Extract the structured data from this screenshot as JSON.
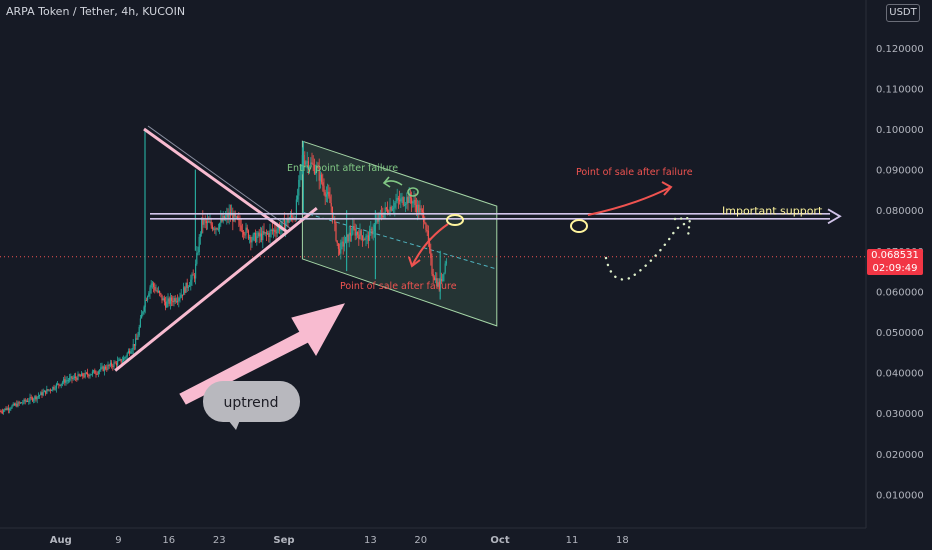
{
  "header": {
    "title": "ARPA Token / Tether, 4h, KUCOIN",
    "currency": "USDT"
  },
  "price_tag": {
    "price": "0.068531",
    "countdown": "02:09:49"
  },
  "colors": {
    "background": "#161a25",
    "up": "#26a69a",
    "down": "#ef5350",
    "trendline": "#f8bbd0",
    "channel": "#a5d6a7",
    "annotation_red": "#ef5350",
    "annotation_green": "#81c784",
    "support": "#d1c4e9"
  },
  "chart_data": {
    "type": "candlestick",
    "symbol": "ARPA Token / Tether",
    "interval": "4h",
    "exchange": "KUCOIN",
    "x_ticks": [
      "Aug",
      "9",
      "16",
      "23",
      "Sep",
      "13",
      "20",
      "Oct",
      "11",
      "18"
    ],
    "y_ticks": [
      "0.120000",
      "0.110000",
      "0.100000",
      "0.090000",
      "0.080000",
      "0.070000",
      "0.060000",
      "0.050000",
      "0.040000",
      "0.030000",
      "0.020000",
      "0.010000"
    ],
    "ylim": [
      0.0,
      0.12
    ],
    "last_price": 0.068531,
    "price_path": [
      {
        "date": "2021-07-23",
        "price": 0.0305
      },
      {
        "date": "2021-07-28",
        "price": 0.034
      },
      {
        "date": "2021-08-01",
        "price": 0.038
      },
      {
        "date": "2021-08-05",
        "price": 0.04
      },
      {
        "date": "2021-08-09",
        "price": 0.043
      },
      {
        "date": "2021-08-11",
        "price": 0.048
      },
      {
        "date": "2021-08-12",
        "price": 0.057
      },
      {
        "date": "2021-08-13",
        "price": 0.062
      },
      {
        "date": "2021-08-15",
        "price": 0.057
      },
      {
        "date": "2021-08-17",
        "price": 0.059
      },
      {
        "date": "2021-08-19",
        "price": 0.064
      },
      {
        "date": "2021-08-20",
        "price": 0.077
      },
      {
        "date": "2021-08-22",
        "price": 0.076
      },
      {
        "date": "2021-08-24",
        "price": 0.079
      },
      {
        "date": "2021-08-27",
        "price": 0.073
      },
      {
        "date": "2021-08-29",
        "price": 0.074
      },
      {
        "date": "2021-08-31",
        "price": 0.076
      },
      {
        "date": "2021-09-02",
        "price": 0.079
      },
      {
        "date": "2021-09-03",
        "price": 0.093
      },
      {
        "date": "2021-09-05",
        "price": 0.09
      },
      {
        "date": "2021-09-07",
        "price": 0.081
      },
      {
        "date": "2021-09-08",
        "price": 0.07
      },
      {
        "date": "2021-09-10",
        "price": 0.075
      },
      {
        "date": "2021-09-12",
        "price": 0.073
      },
      {
        "date": "2021-09-14",
        "price": 0.079
      },
      {
        "date": "2021-09-16",
        "price": 0.082
      },
      {
        "date": "2021-09-18",
        "price": 0.083
      },
      {
        "date": "2021-09-20",
        "price": 0.078
      },
      {
        "date": "2021-09-21",
        "price": 0.065
      },
      {
        "date": "2021-09-22",
        "price": 0.061
      },
      {
        "date": "2021-09-23",
        "price": 0.068
      }
    ],
    "spikes": [
      {
        "date": "2021-08-12",
        "high": 0.1,
        "low": 0.055
      },
      {
        "date": "2021-08-19",
        "high": 0.09,
        "low": 0.07
      },
      {
        "date": "2021-09-03",
        "high": 0.097,
        "low": 0.079
      },
      {
        "date": "2021-09-09",
        "high": 0.08,
        "low": 0.065
      },
      {
        "date": "2021-09-13",
        "high": 0.08,
        "low": 0.063
      },
      {
        "date": "2021-09-22",
        "high": 0.07,
        "low": 0.058
      }
    ],
    "annotations": {
      "entry_point": "Entry point after failure",
      "sale_point_upper": "Point of sale after failure",
      "sale_point_lower": "Point of sale after failure",
      "support": "Important support",
      "uptrend": "uptrend"
    },
    "drawings": {
      "support_level": 0.0785,
      "descending_trendline": [
        {
          "date": "2021-08-12",
          "price": 0.1
        },
        {
          "date": "2021-09-01",
          "price": 0.0745
        }
      ],
      "ascending_trendline": [
        {
          "date": "2021-08-08",
          "price": 0.0405
        },
        {
          "date": "2021-09-05",
          "price": 0.0805
        }
      ],
      "channel_upper": [
        {
          "date": "2021-09-03",
          "price": 0.097
        },
        {
          "date": "2021-09-30",
          "price": 0.081
        }
      ],
      "channel_lower": [
        {
          "date": "2021-09-03",
          "price": 0.068
        },
        {
          "date": "2021-09-30",
          "price": 0.0515
        }
      ],
      "channel_mid": [
        {
          "date": "2021-09-03",
          "price": 0.0795
        },
        {
          "date": "2021-09-30",
          "price": 0.0655
        }
      ]
    }
  }
}
